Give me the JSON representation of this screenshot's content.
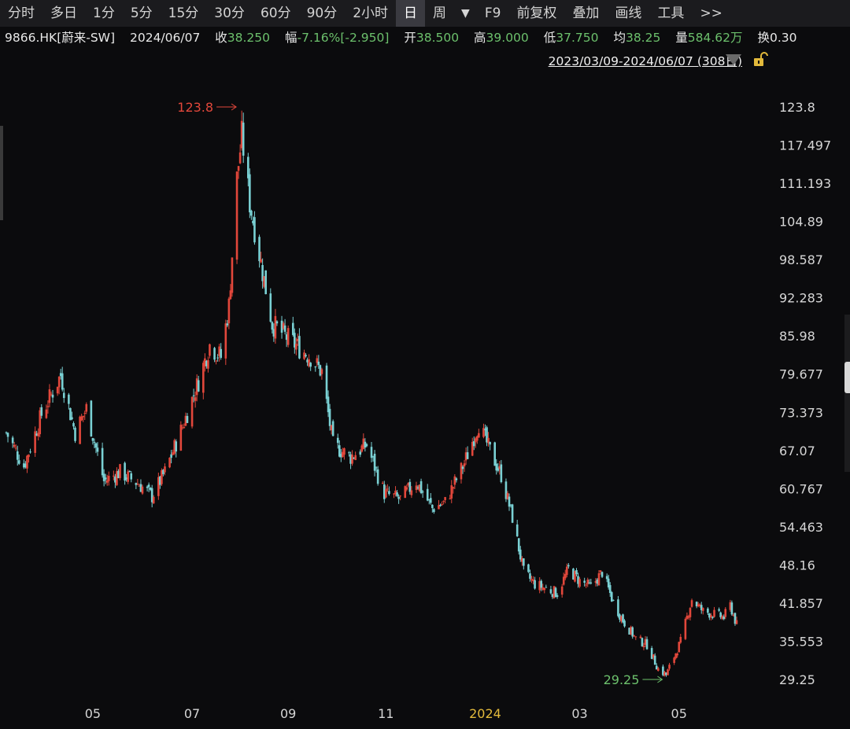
{
  "toolbar": {
    "items": [
      "分时",
      "多日",
      "1分",
      "5分",
      "15分",
      "30分",
      "60分",
      "90分",
      "2小时",
      "日",
      "周",
      "▼",
      "F9",
      "前复权",
      "叠加",
      "画线",
      "工具",
      ">>"
    ],
    "active": "日"
  },
  "quote": {
    "symbol": "9866.HK[蔚来-SW]",
    "date": "2024/06/07",
    "close_label": "收",
    "close": "38.250",
    "change_label": "幅",
    "change": "-7.16%[-2.950]",
    "open_label": "开",
    "open": "38.500",
    "high_label": "高",
    "high": "39.000",
    "low_label": "低",
    "low": "37.750",
    "avg_label": "均",
    "avg": "38.25",
    "volume_label": "量",
    "volume": "584.62万",
    "turnover_label": "换",
    "turnover": "0.30"
  },
  "date_range": "2023/03/09-2024/06/07 (308日)",
  "colors": {
    "up": "#e2473b",
    "down": "#7ad1d4",
    "background": "#0b0b0d",
    "axis_text": "#d6d6d6",
    "highlight_year": "#e2b93b"
  },
  "chart_data": {
    "type": "candlestick",
    "y_ticks": [
      "123.8",
      "117.497",
      "111.193",
      "104.89",
      "98.587",
      "92.283",
      "85.98",
      "79.677",
      "73.373",
      "67.07",
      "60.767",
      "54.463",
      "48.16",
      "41.857",
      "35.553",
      "29.25"
    ],
    "ylim": [
      29.25,
      123.8
    ],
    "x_ticks": [
      "05",
      "07",
      "09",
      "11",
      "2024",
      "03",
      "05"
    ],
    "x_tick_dates": [
      "2023-05-02",
      "2023-07-03",
      "2023-09-01",
      "2023-11-01",
      "2024-01-02",
      "2024-03-01",
      "2024-05-02"
    ],
    "x_range": [
      "2023-03-09",
      "2024-06-07"
    ],
    "annotations": [
      {
        "text": "123.8",
        "date": "2023-08-01",
        "value": 123.8,
        "color": "up"
      },
      {
        "text": "29.25",
        "date": "2024-04-23",
        "value": 29.25,
        "color": "down"
      }
    ],
    "close_series": [
      [
        "2023-03-09",
        70
      ],
      [
        "2023-03-20",
        64.5
      ],
      [
        "2023-03-31",
        73
      ],
      [
        "2023-04-12",
        79.5
      ],
      [
        "2023-04-21",
        70
      ],
      [
        "2023-04-28",
        74
      ],
      [
        "2023-05-09",
        62
      ],
      [
        "2023-05-19",
        63.5
      ],
      [
        "2023-05-31",
        61.5
      ],
      [
        "2023-06-08",
        59.5
      ],
      [
        "2023-06-16",
        63.5
      ],
      [
        "2023-06-27",
        71
      ],
      [
        "2023-07-07",
        78.5
      ],
      [
        "2023-07-14",
        84.5
      ],
      [
        "2023-07-21",
        82.5
      ],
      [
        "2023-07-26",
        91
      ],
      [
        "2023-07-31",
        112
      ],
      [
        "2023-08-03",
        119
      ],
      [
        "2023-08-08",
        108
      ],
      [
        "2023-08-14",
        99.5
      ],
      [
        "2023-08-22",
        88
      ],
      [
        "2023-08-30",
        86
      ],
      [
        "2023-09-08",
        84
      ],
      [
        "2023-09-15",
        82.5
      ],
      [
        "2023-09-22",
        80
      ],
      [
        "2023-09-29",
        68
      ],
      [
        "2023-10-10",
        66
      ],
      [
        "2023-10-20",
        68
      ],
      [
        "2023-10-31",
        60
      ],
      [
        "2023-11-10",
        59
      ],
      [
        "2023-11-20",
        62
      ],
      [
        "2023-11-30",
        57.5
      ],
      [
        "2023-12-08",
        58.5
      ],
      [
        "2023-12-20",
        65
      ],
      [
        "2023-12-29",
        71.5
      ],
      [
        "2024-01-05",
        67
      ],
      [
        "2024-01-12",
        63
      ],
      [
        "2024-01-19",
        56
      ],
      [
        "2024-01-26",
        47
      ],
      [
        "2024-02-02",
        45
      ],
      [
        "2024-02-16",
        43.5
      ],
      [
        "2024-02-23",
        47.5
      ],
      [
        "2024-03-01",
        45.5
      ],
      [
        "2024-03-08",
        44.5
      ],
      [
        "2024-03-15",
        47
      ],
      [
        "2024-03-22",
        42
      ],
      [
        "2024-03-28",
        39
      ],
      [
        "2024-04-05",
        36
      ],
      [
        "2024-04-12",
        35
      ],
      [
        "2024-04-19",
        31
      ],
      [
        "2024-04-24",
        30
      ],
      [
        "2024-05-03",
        35.5
      ],
      [
        "2024-05-10",
        42.5
      ],
      [
        "2024-05-17",
        40.5
      ],
      [
        "2024-05-24",
        40
      ],
      [
        "2024-05-30",
        39.5
      ],
      [
        "2024-06-03",
        41.5
      ],
      [
        "2024-06-07",
        38.25
      ]
    ]
  }
}
